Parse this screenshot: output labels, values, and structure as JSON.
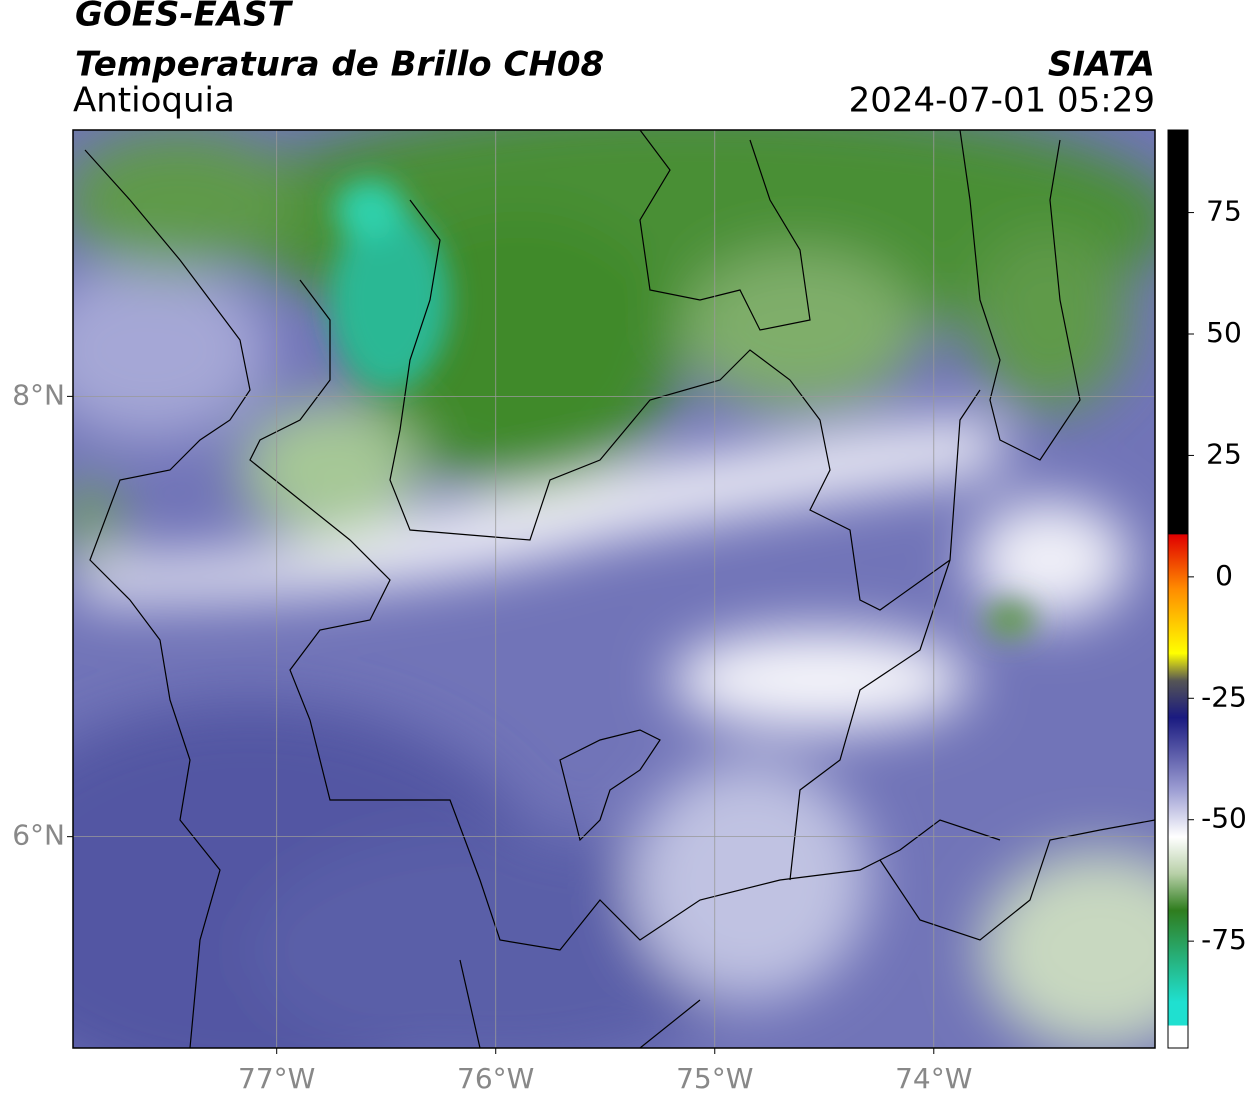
{
  "header": {
    "title": "GOES-EAST",
    "subtitle": "Temperatura de Brillo CH08",
    "region": "Antioquia",
    "source": "SIATA",
    "datetime": "2024-07-01 05:29"
  },
  "map": {
    "xlim": [
      -77.93,
      -72.99
    ],
    "ylim": [
      5.04,
      9.21
    ],
    "xticks": [
      {
        "value": -77,
        "label": "77°W"
      },
      {
        "value": -76,
        "label": "76°W"
      },
      {
        "value": -75,
        "label": "75°W"
      },
      {
        "value": -74,
        "label": "74°W"
      }
    ],
    "yticks": [
      {
        "value": 8,
        "label": "8°N"
      },
      {
        "value": 6,
        "label": "6°N"
      }
    ],
    "grid": true
  },
  "colorbar": {
    "lim": [
      -97,
      92
    ],
    "ticks": [
      75,
      50,
      25,
      0,
      -25,
      -50,
      -75
    ]
  }
}
